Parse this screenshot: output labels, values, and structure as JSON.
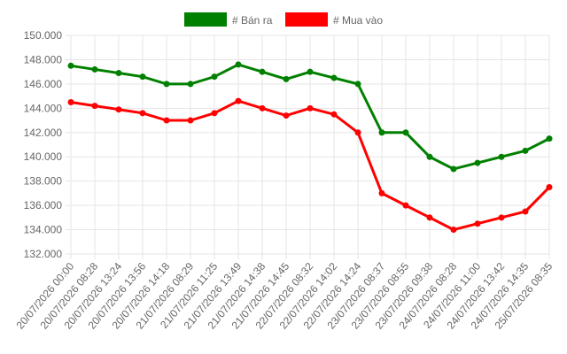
{
  "chart_data": {
    "type": "line",
    "categories": [
      "20/07/2026 00:00",
      "20/07/2026 08:28",
      "20/07/2026 13:24",
      "20/07/2026 13:56",
      "20/07/2026 14:18",
      "21/07/2026 08:29",
      "21/07/2026 11:25",
      "21/07/2026 13:49",
      "21/07/2026 14:38",
      "21/07/2026 14:45",
      "22/07/2026 08:32",
      "22/07/2026 14:02",
      "22/07/2026 14:24",
      "23/07/2026 08:37",
      "23/07/2026 08:55",
      "23/07/2026 09:38",
      "24/07/2026 08:28",
      "24/07/2026 11:00",
      "24/07/2026 13:42",
      "24/07/2026 14:35",
      "25/07/2026 08:35"
    ],
    "series": [
      {
        "name": "# Bán ra",
        "color": "#008000",
        "values": [
          147500,
          147200,
          146900,
          146600,
          146000,
          146000,
          146600,
          147600,
          147000,
          146400,
          147000,
          146500,
          146000,
          142000,
          142000,
          140000,
          139000,
          139500,
          140000,
          140500,
          141500
        ]
      },
      {
        "name": "# Mua vào",
        "color": "#ff0000",
        "values": [
          144500,
          144200,
          143900,
          143600,
          143000,
          143000,
          143600,
          144600,
          144000,
          143400,
          144000,
          143500,
          142000,
          137000,
          136000,
          135000,
          134000,
          134500,
          135000,
          135500,
          137500
        ]
      }
    ],
    "ylim": [
      132000,
      150000
    ],
    "yticks": [
      {
        "value": 132000,
        "label": "132.000"
      },
      {
        "value": 134000,
        "label": "134.000"
      },
      {
        "value": 136000,
        "label": "136.000"
      },
      {
        "value": 138000,
        "label": "138.000"
      },
      {
        "value": 140000,
        "label": "140.000"
      },
      {
        "value": 142000,
        "label": "142.000"
      },
      {
        "value": 144000,
        "label": "144.000"
      },
      {
        "value": 146000,
        "label": "146.000"
      },
      {
        "value": 148000,
        "label": "148.000"
      },
      {
        "value": 150000,
        "label": "150.000"
      }
    ],
    "grid": true,
    "legend": "top"
  }
}
